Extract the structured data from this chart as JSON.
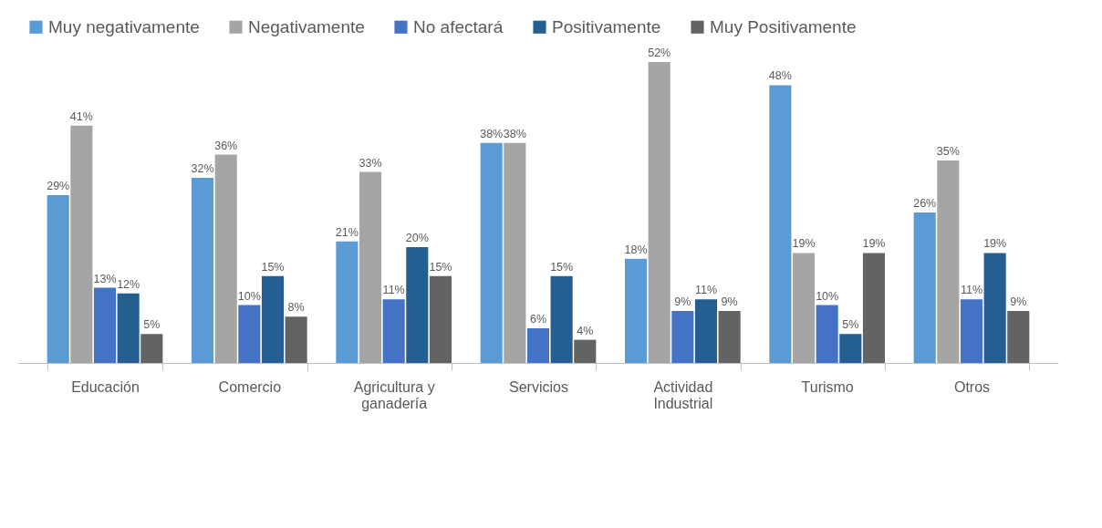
{
  "chart_data": {
    "type": "bar",
    "categories": [
      "Educación",
      "Comercio",
      "Agricultura y ganadería",
      "Servicios",
      "Actividad Industrial",
      "Turismo",
      "Otros"
    ],
    "series": [
      {
        "name": "Muy negativamente",
        "color": "#5b9bd5",
        "values": [
          29,
          32,
          21,
          38,
          18,
          48,
          26
        ],
        "value_labels": [
          "29%",
          "32%",
          "21%",
          "38%",
          "18%",
          "48%",
          "26%"
        ]
      },
      {
        "name": "Negativamente",
        "color": "#a5a5a5",
        "values": [
          41,
          36,
          33,
          38,
          52,
          19,
          35
        ],
        "value_labels": [
          "41%",
          "36%",
          "33%",
          "38%",
          "52%",
          "19%",
          "35%"
        ]
      },
      {
        "name": "No afectará",
        "color": "#4472c4",
        "values": [
          13,
          10,
          11,
          6,
          9,
          10,
          11
        ],
        "value_labels": [
          "13%",
          "10%",
          "11%",
          "6%",
          "9%",
          "10%",
          "11%"
        ]
      },
      {
        "name": "Positivamente",
        "color": "#255e91",
        "values": [
          12,
          15,
          20,
          15,
          11,
          5,
          19
        ],
        "value_labels": [
          "12%",
          "15%",
          "20%",
          "15%",
          "11%",
          "5%",
          "19%"
        ]
      },
      {
        "name": "Muy Positivamente",
        "color": "#636363",
        "values": [
          5,
          8,
          15,
          4,
          9,
          19,
          9
        ],
        "value_labels": [
          "5%",
          "8%",
          "15%",
          "4%",
          "9%",
          "19%",
          "9%"
        ]
      }
    ],
    "legend": "top",
    "grid": false
  }
}
